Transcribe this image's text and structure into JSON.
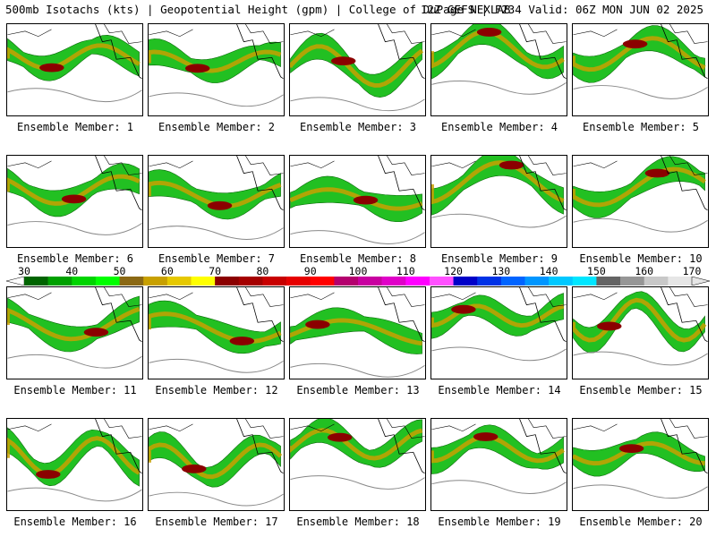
{
  "header": {
    "left": "500mb Isotachs (kts) | Geopotential Height (gpm) | College of DuPage NEXLAB",
    "right": "12Z GEFS | F234 Valid: 06Z MON JUN 02 2025"
  },
  "panels": [
    {
      "label": "Ensemble Member: 1"
    },
    {
      "label": "Ensemble Member: 2"
    },
    {
      "label": "Ensemble Member: 3"
    },
    {
      "label": "Ensemble Member: 4"
    },
    {
      "label": "Ensemble Member: 5"
    },
    {
      "label": "Ensemble Member: 6"
    },
    {
      "label": "Ensemble Member: 7"
    },
    {
      "label": "Ensemble Member: 8"
    },
    {
      "label": "Ensemble Member: 9"
    },
    {
      "label": "Ensemble Member: 10"
    },
    {
      "label": "Ensemble Member: 11"
    },
    {
      "label": "Ensemble Member: 12"
    },
    {
      "label": "Ensemble Member: 13"
    },
    {
      "label": "Ensemble Member: 14"
    },
    {
      "label": "Ensemble Member: 15"
    },
    {
      "label": "Ensemble Member: 16"
    },
    {
      "label": "Ensemble Member: 17"
    },
    {
      "label": "Ensemble Member: 18"
    },
    {
      "label": "Ensemble Member: 19"
    },
    {
      "label": "Ensemble Member: 20"
    }
  ],
  "colorbar": {
    "labels": [
      "30",
      "40",
      "50",
      "60",
      "70",
      "80",
      "90",
      "100",
      "110",
      "120",
      "130",
      "140",
      "150",
      "160",
      "170"
    ],
    "colors": [
      "#006400",
      "#00a000",
      "#00d400",
      "#00ff00",
      "#8b6914",
      "#c8a000",
      "#e6c800",
      "#ffff00",
      "#8b0000",
      "#a50000",
      "#c80000",
      "#e60000",
      "#ff0000",
      "#b4006e",
      "#c800a0",
      "#e000c8",
      "#ff00ff",
      "#ff50ff",
      "#0000c8",
      "#0032e6",
      "#0064ff",
      "#0096ff",
      "#00c8ff",
      "#00e6ff",
      "#646464",
      "#969696",
      "#c8c8c8",
      "#e6e6e6"
    ]
  }
}
